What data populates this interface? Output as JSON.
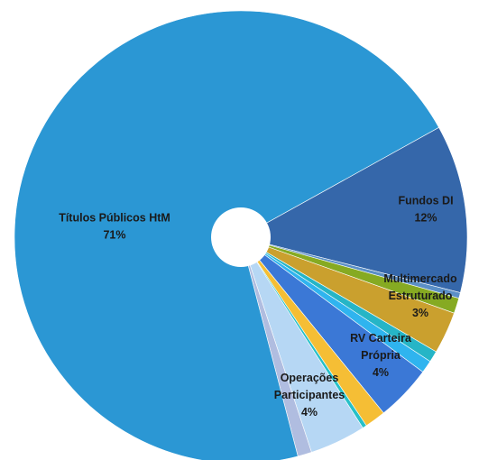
{
  "chart_data": {
    "type": "pie",
    "title": "",
    "donut_hole": true,
    "slices": [
      {
        "name": "Fundos DI",
        "value": 12,
        "color": "#3567aa",
        "label_lines": [
          "Fundos DI",
          "12%"
        ]
      },
      {
        "name": "",
        "value": 0.4,
        "color": "#5b8fc6",
        "label_lines": []
      },
      {
        "name": "",
        "value": 1.1,
        "color": "#86aa22",
        "label_lines": []
      },
      {
        "name": "Multimercado Estruturado",
        "value": 3,
        "color": "#caa02e",
        "label_lines": [
          "Multimercado",
          "Estruturado",
          "3%"
        ]
      },
      {
        "name": "",
        "value": 0.8,
        "color": "#26b5c6",
        "label_lines": []
      },
      {
        "name": "",
        "value": 0.9,
        "color": "#2fb4ef",
        "label_lines": []
      },
      {
        "name": "RV Carteira Própria",
        "value": 4,
        "color": "#3b78d6",
        "label_lines": [
          "RV Carteira",
          "Própria",
          "4%"
        ]
      },
      {
        "name": "",
        "value": 1.5,
        "color": "#f5be35",
        "label_lines": []
      },
      {
        "name": "",
        "value": 0.3,
        "color": "#27c0c8",
        "label_lines": []
      },
      {
        "name": "Operações Participantes",
        "value": 4,
        "color": "#b6d7f4",
        "label_lines": [
          "Operações",
          "Participantes",
          "4%"
        ]
      },
      {
        "name": "",
        "value": 1.0,
        "color": "#b0bde0",
        "label_lines": []
      },
      {
        "name": "Títulos Públicos HtM",
        "value": 71,
        "color": "#2b97d4",
        "label_lines": [
          "Títulos Públicos HtM",
          "71%"
        ]
      }
    ]
  }
}
